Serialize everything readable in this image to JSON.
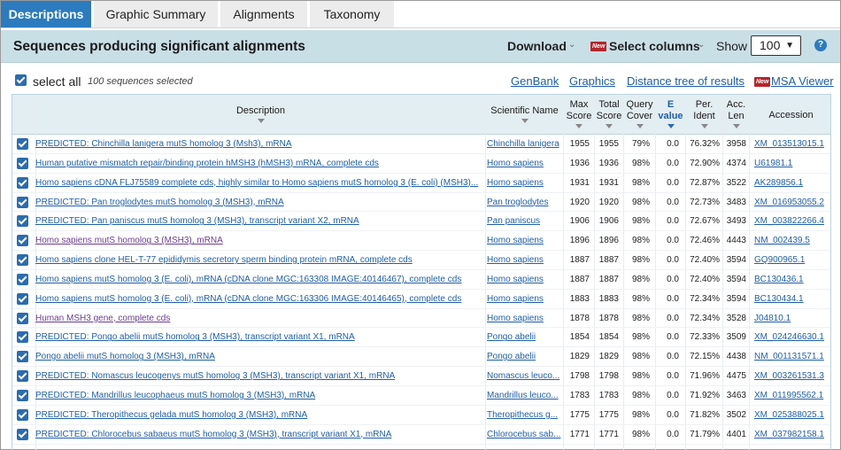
{
  "tabs": [
    "Descriptions",
    "Graphic Summary",
    "Alignments",
    "Taxonomy"
  ],
  "header": {
    "title": "Sequences producing significant alignments",
    "download_label": "Download",
    "new_badge": "New",
    "select_columns_label": "Select columns",
    "show_label": "Show",
    "show_value": "100",
    "help_icon": "?"
  },
  "toolbar": {
    "select_all_label": "select all",
    "selected_count": "100 sequences selected",
    "links": [
      "GenBank",
      "Graphics",
      "Distance tree of results"
    ],
    "msa_label": "MSA Viewer"
  },
  "columns": {
    "description": "Description",
    "scientific_name": "Scientific Name",
    "max_score": [
      "Max",
      "Score"
    ],
    "total_score": [
      "Total",
      "Score"
    ],
    "query_cover": [
      "Query",
      "Cover"
    ],
    "evalue": [
      "E",
      "value"
    ],
    "per_ident": [
      "Per.",
      "Ident"
    ],
    "acc_len": [
      "Acc.",
      "Len"
    ],
    "accession": "Accession"
  },
  "rows": [
    {
      "desc": "PREDICTED: Chinchilla lanigera mutS homolog 3 (Msh3), mRNA",
      "sci": "Chinchilla lanigera",
      "max": "1955",
      "total": "1955",
      "cover": "79%",
      "e": "0.0",
      "ident": "76.32%",
      "len": "3958",
      "acc": "XM_013513015.1",
      "visited": false
    },
    {
      "desc": "Human putative mismatch repair/binding protein hMSH3 (hMSH3) mRNA, complete cds",
      "sci": "Homo sapiens",
      "max": "1936",
      "total": "1936",
      "cover": "98%",
      "e": "0.0",
      "ident": "72.90%",
      "len": "4374",
      "acc": "U61981.1",
      "visited": false
    },
    {
      "desc": "Homo sapiens cDNA FLJ75589 complete cds, highly similar to Homo sapiens mutS homolog 3 (E. coli) (MSH3)...",
      "sci": "Homo sapiens",
      "max": "1931",
      "total": "1931",
      "cover": "98%",
      "e": "0.0",
      "ident": "72.87%",
      "len": "3522",
      "acc": "AK289856.1",
      "visited": false
    },
    {
      "desc": "PREDICTED: Pan troglodytes mutS homolog 3 (MSH3), mRNA",
      "sci": "Pan troglodytes",
      "max": "1920",
      "total": "1920",
      "cover": "98%",
      "e": "0.0",
      "ident": "72.73%",
      "len": "3483",
      "acc": "XM_016953055.2",
      "visited": false
    },
    {
      "desc": "PREDICTED: Pan paniscus mutS homolog 3 (MSH3), transcript variant X2, mRNA",
      "sci": "Pan paniscus",
      "max": "1906",
      "total": "1906",
      "cover": "98%",
      "e": "0.0",
      "ident": "72.67%",
      "len": "3493",
      "acc": "XM_003822266.4",
      "visited": false
    },
    {
      "desc": "Homo sapiens mutS homolog 3 (MSH3), mRNA",
      "sci": "Homo sapiens",
      "max": "1896",
      "total": "1896",
      "cover": "98%",
      "e": "0.0",
      "ident": "72.46%",
      "len": "4443",
      "acc": "NM_002439.5",
      "visited": true
    },
    {
      "desc": "Homo sapiens clone HEL-T-77 epididymis secretory sperm binding protein mRNA, complete cds",
      "sci": "Homo sapiens",
      "max": "1887",
      "total": "1887",
      "cover": "98%",
      "e": "0.0",
      "ident": "72.40%",
      "len": "3594",
      "acc": "GQ900965.1",
      "visited": false
    },
    {
      "desc": "Homo sapiens mutS homolog 3 (E. coli), mRNA (cDNA clone MGC:163308 IMAGE:40146467), complete cds",
      "sci": "Homo sapiens",
      "max": "1887",
      "total": "1887",
      "cover": "98%",
      "e": "0.0",
      "ident": "72.40%",
      "len": "3594",
      "acc": "BC130436.1",
      "visited": false
    },
    {
      "desc": "Homo sapiens mutS homolog 3 (E. coli), mRNA (cDNA clone MGC:163306 IMAGE:40146465), complete cds",
      "sci": "Homo sapiens",
      "max": "1883",
      "total": "1883",
      "cover": "98%",
      "e": "0.0",
      "ident": "72.34%",
      "len": "3594",
      "acc": "BC130434.1",
      "visited": false
    },
    {
      "desc": "Human MSH3 gene, complete cds",
      "sci": "Homo sapiens",
      "max": "1878",
      "total": "1878",
      "cover": "98%",
      "e": "0.0",
      "ident": "72.34%",
      "len": "3528",
      "acc": "J04810.1",
      "visited": true
    },
    {
      "desc": "PREDICTED: Pongo abelii mutS homolog 3 (MSH3), transcript variant X1, mRNA",
      "sci": "Pongo abelii",
      "max": "1854",
      "total": "1854",
      "cover": "98%",
      "e": "0.0",
      "ident": "72.33%",
      "len": "3509",
      "acc": "XM_024246630.1",
      "visited": false
    },
    {
      "desc": "Pongo abelii mutS homolog 3 (MSH3), mRNA",
      "sci": "Pongo abelii",
      "max": "1829",
      "total": "1829",
      "cover": "98%",
      "e": "0.0",
      "ident": "72.15%",
      "len": "4438",
      "acc": "NM_001131571.1",
      "visited": false
    },
    {
      "desc": "PREDICTED: Nomascus leucogenys mutS homolog 3 (MSH3), transcript variant X1, mRNA",
      "sci": "Nomascus leuco...",
      "max": "1798",
      "total": "1798",
      "cover": "98%",
      "e": "0.0",
      "ident": "71.96%",
      "len": "4475",
      "acc": "XM_003261531.3",
      "visited": false
    },
    {
      "desc": "PREDICTED: Mandrillus leucophaeus mutS homolog 3 (MSH3), mRNA",
      "sci": "Mandrillus leuco...",
      "max": "1783",
      "total": "1783",
      "cover": "98%",
      "e": "0.0",
      "ident": "71.92%",
      "len": "3463",
      "acc": "XM_011995562.1",
      "visited": false
    },
    {
      "desc": "PREDICTED: Theropithecus gelada mutS homolog 3 (MSH3), mRNA",
      "sci": "Theropithecus g...",
      "max": "1775",
      "total": "1775",
      "cover": "98%",
      "e": "0.0",
      "ident": "71.82%",
      "len": "3502",
      "acc": "XM_025388025.1",
      "visited": false
    },
    {
      "desc": "PREDICTED: Chlorocebus sabaeus mutS homolog 3 (MSH3), transcript variant X1, mRNA",
      "sci": "Chlorocebus sab...",
      "max": "1771",
      "total": "1771",
      "cover": "98%",
      "e": "0.0",
      "ident": "71.79%",
      "len": "4401",
      "acc": "XM_037982158.1",
      "visited": false
    }
  ]
}
